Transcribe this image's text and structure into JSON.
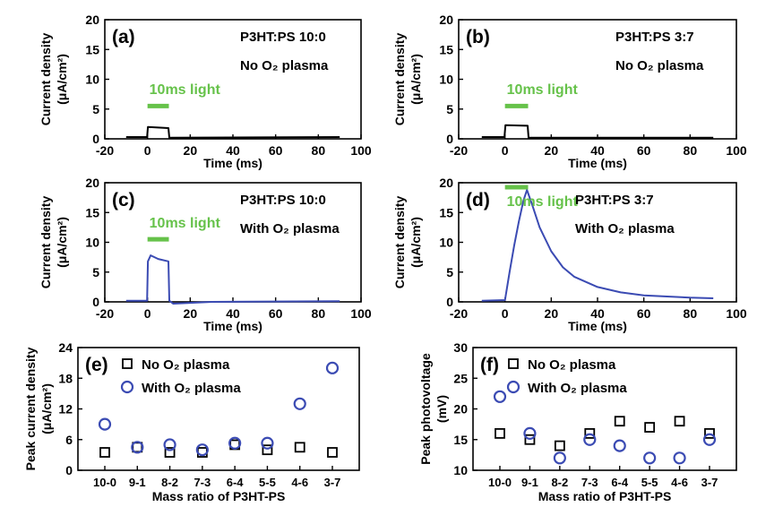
{
  "colors": {
    "black": "#000000",
    "blue": "#3b4bb3",
    "green": "#66c24a"
  },
  "panel_labels": {
    "a": "(a)",
    "b": "(b)",
    "c": "(c)",
    "d": "(d)",
    "e": "(e)",
    "f": "(f)"
  },
  "sample_labels": {
    "a": [
      "P3HT:PS 10:0",
      "No O₂ plasma"
    ],
    "b": [
      "P3HT:PS 3:7",
      "No O₂ plasma"
    ],
    "c": [
      "P3HT:PS 10:0",
      "With O₂ plasma"
    ],
    "d": [
      "P3HT:PS 3:7",
      "With O₂ plasma"
    ]
  },
  "light_label": "10ms light",
  "units": "(μA/cm²)",
  "chart_data": [
    {
      "id": "a",
      "type": "line",
      "xlabel": "Time (ms)",
      "ylabel": "Current density",
      "xlim": [
        -20,
        100
      ],
      "ylim": [
        0,
        20
      ],
      "xticks": [
        -20,
        0,
        20,
        40,
        60,
        80,
        100
      ],
      "yticks": [
        0,
        5,
        10,
        15,
        20
      ],
      "light_pulse_ms": [
        0,
        10
      ],
      "color": "#000000",
      "x": [
        -10,
        -0.2,
        0.2,
        9.8,
        10.2,
        90
      ],
      "y": [
        0.3,
        0.3,
        2.0,
        1.8,
        0.2,
        0.3
      ]
    },
    {
      "id": "b",
      "type": "line",
      "xlabel": "Time (ms)",
      "ylabel": "Current density",
      "xlim": [
        -20,
        100
      ],
      "ylim": [
        0,
        20
      ],
      "xticks": [
        -20,
        0,
        20,
        40,
        60,
        80,
        100
      ],
      "yticks": [
        0,
        5,
        10,
        15,
        20
      ],
      "light_pulse_ms": [
        0,
        10
      ],
      "color": "#000000",
      "x": [
        -10,
        -0.2,
        0.2,
        9.8,
        10.2,
        90
      ],
      "y": [
        0.3,
        0.3,
        2.3,
        2.2,
        0.2,
        0.2
      ]
    },
    {
      "id": "c",
      "type": "line",
      "xlabel": "Time (ms)",
      "ylabel": "Current density",
      "xlim": [
        -20,
        100
      ],
      "ylim": [
        0,
        20
      ],
      "xticks": [
        -20,
        0,
        20,
        40,
        60,
        80,
        100
      ],
      "yticks": [
        0,
        5,
        10,
        15,
        20
      ],
      "light_pulse_ms": [
        0,
        10
      ],
      "color": "#3b4bb3",
      "x": [
        -10,
        -0.2,
        0.2,
        1.5,
        5,
        9.8,
        10.2,
        12,
        30,
        90
      ],
      "y": [
        0.2,
        0.2,
        6.8,
        7.8,
        7.2,
        6.8,
        0.2,
        -0.3,
        0.0,
        0.1
      ]
    },
    {
      "id": "d",
      "type": "line",
      "xlabel": "Time (ms)",
      "ylabel": "Current density",
      "xlim": [
        -20,
        100
      ],
      "ylim": [
        0,
        20
      ],
      "xticks": [
        -20,
        0,
        20,
        40,
        60,
        80,
        100
      ],
      "yticks": [
        0,
        5,
        10,
        15,
        20
      ],
      "light_pulse_ms": [
        0,
        10
      ],
      "color": "#3b4bb3",
      "x": [
        -10,
        0,
        2,
        4,
        6,
        8,
        9.5,
        12,
        15,
        20,
        25,
        30,
        40,
        50,
        60,
        70,
        80,
        90
      ],
      "y": [
        0.2,
        0.3,
        5,
        9.5,
        13.5,
        17,
        18.8,
        16,
        12.5,
        8.5,
        5.8,
        4.2,
        2.5,
        1.6,
        1.1,
        0.9,
        0.7,
        0.6
      ]
    },
    {
      "id": "e",
      "type": "scatter",
      "xlabel": "Mass ratio of P3HT-PS",
      "ylabel": "Peak current density",
      "ylim": [
        0,
        24
      ],
      "yticks": [
        0,
        6,
        12,
        18,
        24
      ],
      "categories": [
        "10-0",
        "9-1",
        "8-2",
        "7-3",
        "6-4",
        "5-5",
        "4-6",
        "3-7"
      ],
      "series": [
        {
          "name": "No O₂ plasma",
          "marker": "square",
          "values": [
            3.5,
            4.5,
            3.5,
            3.5,
            5.0,
            4.0,
            4.5,
            3.5
          ]
        },
        {
          "name": "With O₂ plasma",
          "marker": "circle",
          "values": [
            9.0,
            4.5,
            5.0,
            4.0,
            5.3,
            5.3,
            13.0,
            20.0
          ]
        }
      ]
    },
    {
      "id": "f",
      "type": "scatter",
      "xlabel": "Mass ratio of P3HT-PS",
      "ylabel": "Peak photovoltage",
      "ylim": [
        10,
        30
      ],
      "yticks": [
        10,
        15,
        20,
        25,
        30
      ],
      "categories": [
        "10-0",
        "9-1",
        "8-2",
        "7-3",
        "6-4",
        "5-5",
        "4-6",
        "3-7"
      ],
      "series": [
        {
          "name": "No O₂ plasma",
          "marker": "square",
          "values": [
            16,
            15,
            14,
            16,
            18,
            17,
            18,
            16
          ]
        },
        {
          "name": "With O₂ plasma",
          "marker": "circle",
          "values": [
            22,
            16,
            12,
            15,
            14,
            12,
            12,
            15
          ]
        }
      ]
    }
  ]
}
